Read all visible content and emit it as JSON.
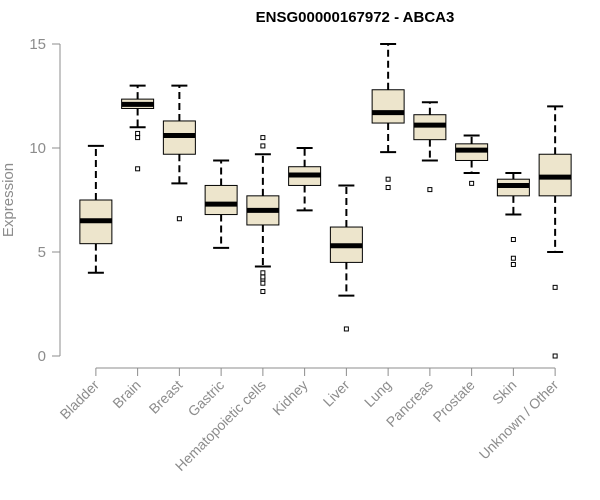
{
  "chart_data": {
    "type": "boxplot",
    "title": "ENSG00000167972 - ABCA3",
    "ylabel": "Expression",
    "xlabel": "",
    "ylim": [
      0,
      15
    ],
    "yticks": [
      0,
      5,
      10,
      15
    ],
    "grid": false,
    "legend": "none",
    "box_fill": "#ede5cc",
    "box_stroke": "#000000",
    "categories": [
      "Bladder",
      "Brain",
      "Breast",
      "Gastric",
      "Hematopoietic cells",
      "Kidney",
      "Liver",
      "Lung",
      "Pancreas",
      "Prostate",
      "Skin",
      "Unknown / Other"
    ],
    "boxes": [
      {
        "category": "Bladder",
        "whisker_low": 4.0,
        "q1": 5.4,
        "median": 6.5,
        "q3": 7.5,
        "whisker_high": 10.1,
        "outliers": []
      },
      {
        "category": "Brain",
        "whisker_low": 11.0,
        "q1": 11.9,
        "median": 12.1,
        "q3": 12.35,
        "whisker_high": 13.0,
        "outliers": [
          9.0,
          10.5,
          10.7
        ]
      },
      {
        "category": "Breast",
        "whisker_low": 8.3,
        "q1": 9.7,
        "median": 10.6,
        "q3": 11.3,
        "whisker_high": 13.0,
        "outliers": [
          6.6
        ]
      },
      {
        "category": "Gastric",
        "whisker_low": 5.2,
        "q1": 6.8,
        "median": 7.3,
        "q3": 8.2,
        "whisker_high": 9.4,
        "outliers": []
      },
      {
        "category": "Hematopoietic cells",
        "whisker_low": 4.3,
        "q1": 6.3,
        "median": 7.0,
        "q3": 7.7,
        "whisker_high": 9.7,
        "outliers": [
          3.1,
          3.5,
          3.7,
          3.8,
          4.0,
          10.1,
          10.5
        ]
      },
      {
        "category": "Kidney",
        "whisker_low": 7.0,
        "q1": 8.2,
        "median": 8.7,
        "q3": 9.1,
        "whisker_high": 10.0,
        "outliers": []
      },
      {
        "category": "Liver",
        "whisker_low": 2.9,
        "q1": 4.5,
        "median": 5.3,
        "q3": 6.2,
        "whisker_high": 8.2,
        "outliers": [
          1.3
        ]
      },
      {
        "category": "Lung",
        "whisker_low": 9.8,
        "q1": 11.2,
        "median": 11.7,
        "q3": 12.8,
        "whisker_high": 15.0,
        "outliers": [
          8.1,
          8.5
        ]
      },
      {
        "category": "Pancreas",
        "whisker_low": 9.4,
        "q1": 10.4,
        "median": 11.1,
        "q3": 11.6,
        "whisker_high": 12.2,
        "outliers": [
          8.0
        ]
      },
      {
        "category": "Prostate",
        "whisker_low": 8.8,
        "q1": 9.4,
        "median": 9.9,
        "q3": 10.2,
        "whisker_high": 10.6,
        "outliers": [
          8.3
        ]
      },
      {
        "category": "Skin",
        "whisker_low": 6.8,
        "q1": 7.7,
        "median": 8.2,
        "q3": 8.5,
        "whisker_high": 8.8,
        "outliers": [
          4.4,
          4.7,
          5.6
        ]
      },
      {
        "category": "Unknown / Other",
        "whisker_low": 5.0,
        "q1": 7.7,
        "median": 8.6,
        "q3": 9.7,
        "whisker_high": 12.0,
        "outliers": [
          0.0,
          3.3
        ]
      }
    ]
  }
}
